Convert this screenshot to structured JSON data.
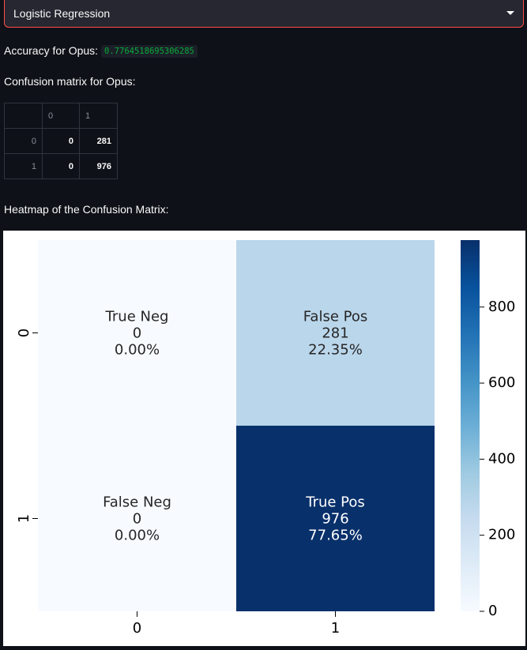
{
  "model_select": {
    "value": "Logistic Regression",
    "icon": "chevron-down-icon"
  },
  "accuracy": {
    "label": "Accuracy for Opus:",
    "value": "0.7764518695306285"
  },
  "confusion_table": {
    "label": "Confusion matrix for Opus:",
    "columns": [
      "0",
      "1"
    ],
    "rows": [
      {
        "index": "0",
        "values": [
          "0",
          "281"
        ]
      },
      {
        "index": "1",
        "values": [
          "0",
          "976"
        ]
      }
    ]
  },
  "heatmap_label": "Heatmap of the Confusion Matrix:",
  "colors": {
    "accent": "#ff4b4b",
    "code_text": "#09ab3b",
    "background": "#0e1117"
  },
  "chart_data": {
    "type": "heatmap",
    "title": "",
    "xlabel": "",
    "ylabel": "",
    "x_categories": [
      "0",
      "1"
    ],
    "y_categories": [
      "0",
      "1"
    ],
    "values": [
      [
        0,
        281
      ],
      [
        0,
        976
      ]
    ],
    "cell_labels": [
      [
        {
          "name": "True Neg",
          "count": "0",
          "percent": "0.00%"
        },
        {
          "name": "False Pos",
          "count": "281",
          "percent": "22.35%"
        }
      ],
      [
        {
          "name": "False Neg",
          "count": "0",
          "percent": "0.00%"
        },
        {
          "name": "True Pos",
          "count": "976",
          "percent": "77.65%"
        }
      ]
    ],
    "colormap": "Blues",
    "colorbar": {
      "range": [
        0,
        976
      ],
      "ticks": [
        0,
        200,
        400,
        600,
        800
      ],
      "tick_labels": [
        "0",
        "200",
        "400",
        "600",
        "800"
      ]
    },
    "grid": false,
    "legend": "colorbar-right"
  }
}
